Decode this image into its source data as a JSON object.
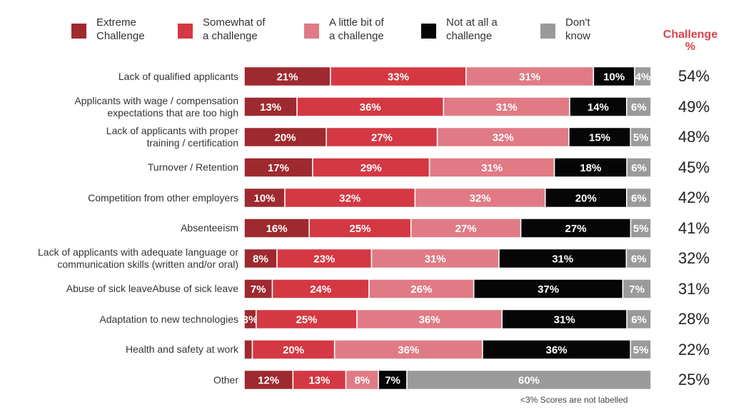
{
  "chart_data": {
    "type": "bar",
    "orientation": "horizontal",
    "stacked": true,
    "normalized": true,
    "title": "",
    "xlabel": "",
    "ylabel": "",
    "series": [
      {
        "name": "Extreme Challenge",
        "color": "#9e2a2f",
        "values": [
          21,
          13,
          20,
          17,
          10,
          16,
          8,
          7,
          3,
          2,
          12
        ]
      },
      {
        "name": "Somewhat of a challenge",
        "color": "#d43843",
        "values": [
          33,
          36,
          27,
          29,
          32,
          25,
          23,
          24,
          25,
          20,
          13
        ]
      },
      {
        "name": "A little bit of a challenge",
        "color": "#e07b86",
        "values": [
          31,
          31,
          32,
          31,
          32,
          27,
          31,
          26,
          36,
          36,
          8
        ]
      },
      {
        "name": "Not at all a challenge",
        "color": "#060606",
        "values": [
          10,
          14,
          15,
          18,
          20,
          27,
          31,
          37,
          31,
          36,
          7
        ]
      },
      {
        "name": "Don't know",
        "color": "#9a9a9a",
        "values": [
          4,
          6,
          5,
          6,
          6,
          5,
          6,
          7,
          6,
          5,
          60
        ]
      }
    ],
    "categories": [
      "Lack of qualified applicants",
      "Applicants with wage / compensation\nexpectations that are too high",
      "Lack of applicants with proper\ntraining / certification",
      "Turnover / Retention",
      "Competition from other employers",
      "Absenteeism",
      "Lack of applicants with adequate language or\ncommunication skills (written and/or oral)",
      "Abuse of sick leaveAbuse of sick leave",
      "Adaptation to new technologies",
      "Health and safety at work",
      "Other"
    ],
    "challenge_pct": [
      "54%",
      "49%",
      "48%",
      "45%",
      "42%",
      "41%",
      "32%",
      "31%",
      "28%",
      "22%",
      "25%"
    ],
    "challenge_header": "Challenge\n%",
    "label_threshold": 3,
    "footnote": "<3% Scores are not labelled",
    "legend": [
      {
        "label": "Extreme\nChallenge",
        "color": "#9e2a2f"
      },
      {
        "label": "Somewhat of\na challenge",
        "color": "#d43843"
      },
      {
        "label": "A little bit of\na challenge",
        "color": "#e07b86"
      },
      {
        "label": "Not at all a\nchallenge",
        "color": "#060606"
      },
      {
        "label": "Don't\nknow",
        "color": "#9a9a9a"
      }
    ],
    "legend_position": "top",
    "grid": false
  }
}
